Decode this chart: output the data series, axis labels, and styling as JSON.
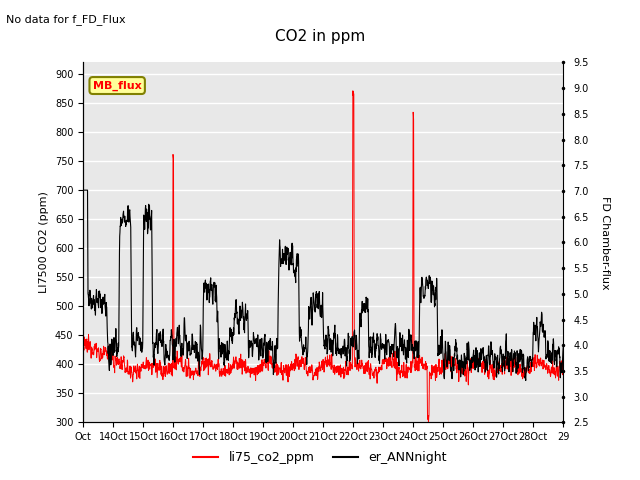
{
  "title": "CO2 in ppm",
  "subtitle": "No data for f_FD_Flux",
  "ylabel_left": "LI7500 CO2 (ppm)",
  "ylabel_right": "FD Chamber-flux",
  "ylim_left": [
    300,
    920
  ],
  "ylim_right": [
    2.5,
    9.5
  ],
  "yticks_left": [
    300,
    350,
    400,
    450,
    500,
    550,
    600,
    650,
    700,
    750,
    800,
    850,
    900
  ],
  "yticks_right": [
    2.5,
    3.0,
    3.5,
    4.0,
    4.5,
    5.0,
    5.5,
    6.0,
    6.5,
    7.0,
    7.5,
    8.0,
    8.5,
    9.0,
    9.5
  ],
  "xtick_labels": [
    "Oct",
    "14Oct",
    "15Oct",
    "16Oct",
    "17Oct",
    "18Oct",
    "19Oct",
    "20Oct",
    "21Oct",
    "22Oct",
    "23Oct",
    "24Oct",
    "25Oct",
    "26Oct",
    "27Oct",
    "28Oct",
    "29"
  ],
  "legend_labels": [
    "li75_co2_ppm",
    "er_ANNnight"
  ],
  "legend_colors": [
    "red",
    "black"
  ],
  "line_co2_color": "red",
  "line_ann_color": "black",
  "background_color": "#e8e8e8",
  "mb_flux_box_color": "#ffff99",
  "mb_flux_text_color": "red",
  "mb_flux_border_color": "olive"
}
